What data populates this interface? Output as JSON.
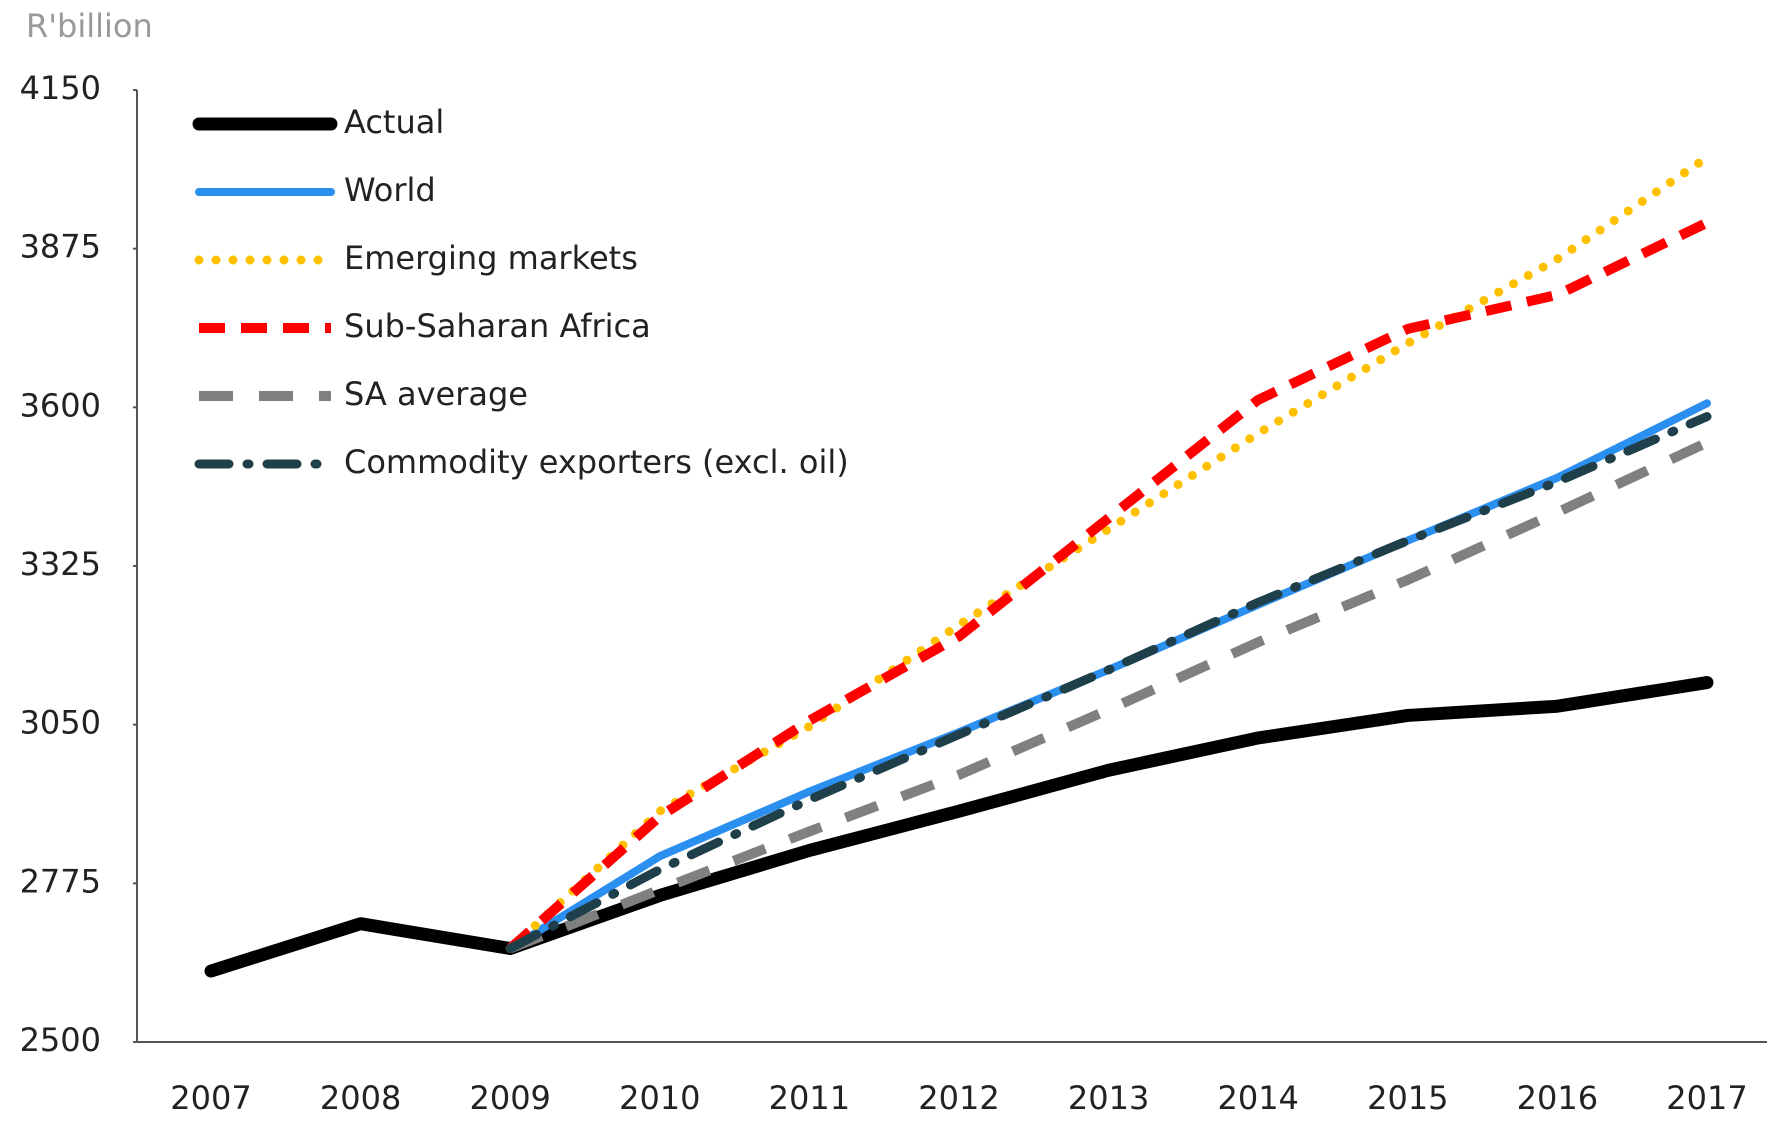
{
  "chart_data": {
    "type": "line",
    "y_label": "R'billion",
    "categories": [
      "2007",
      "2008",
      "2009",
      "2010",
      "2011",
      "2012",
      "2013",
      "2014",
      "2015",
      "2016",
      "2017"
    ],
    "ylim": [
      2500,
      4150
    ],
    "yticks": [
      2500,
      2775,
      3050,
      3325,
      3600,
      3875,
      4150
    ],
    "grid": false,
    "legend": "top-left",
    "series": [
      {
        "name": "Actual",
        "color": "#000000",
        "dash": "thick",
        "values": [
          2623,
          2705,
          2662,
          2754,
          2832,
          2900,
          2971,
          3027,
          3066,
          3082,
          3123
        ]
      },
      {
        "name": "World",
        "color": "#2b8ff0",
        "dash": "solid",
        "values": [
          null,
          null,
          2662,
          2822,
          2934,
          3037,
          3145,
          3258,
          3369,
          3478,
          3607
        ]
      },
      {
        "name": "Emerging markets",
        "color": "#ffc000",
        "dash": "dotted",
        "values": [
          null,
          null,
          2662,
          2900,
          3047,
          3223,
          3389,
          3555,
          3711,
          3857,
          4033
        ]
      },
      {
        "name": "Sub-Saharan Africa",
        "color": "#ff0000",
        "dash": "dashed",
        "values": [
          null,
          null,
          2662,
          2891,
          3057,
          3203,
          3408,
          3613,
          3736,
          3795,
          3920
        ]
      },
      {
        "name": "SA average",
        "color": "#808080",
        "dash": "long-dash",
        "values": [
          null,
          null,
          2662,
          2764,
          2865,
          2963,
          3076,
          3193,
          3301,
          3418,
          3539
        ]
      },
      {
        "name": "Commodity exporters (excl. oil)",
        "color": "#1f3f4a",
        "dash": "dash-dot",
        "values": [
          null,
          null,
          2662,
          2799,
          2920,
          3033,
          3145,
          3262,
          3369,
          3471,
          3584
        ]
      }
    ]
  }
}
